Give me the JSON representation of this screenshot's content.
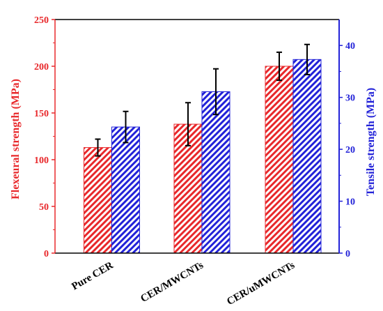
{
  "chart_data": {
    "type": "bar",
    "categories": [
      "Pure CER",
      "CER/MWCNTs",
      "CER/uMWCNTs"
    ],
    "series": [
      {
        "name": "Flexeural strength",
        "axis": "left",
        "values": [
          113,
          138,
          200
        ],
        "errors": [
          9,
          23,
          15
        ],
        "color": "#e8282b",
        "pattern": "diagonal-hatch"
      },
      {
        "name": "Tensile strength",
        "axis": "right",
        "values": [
          24.3,
          31.1,
          37.3
        ],
        "errors": [
          3.0,
          4.4,
          2.9
        ],
        "color": "#2222d8",
        "pattern": "diagonal-hatch"
      }
    ],
    "ylabel_left": "Flexeural strength (MPa)",
    "ylabel_right": "Tensile strength (MPa)",
    "ylim_left": [
      0,
      250
    ],
    "ylim_right": [
      0,
      45
    ],
    "yticks_left": [
      0,
      50,
      100,
      150,
      200,
      250
    ],
    "yticks_right": [
      0,
      10,
      20,
      30,
      40
    ],
    "left_axis_color": "#e8282b",
    "right_axis_color": "#2222d8",
    "grid": false,
    "legend": "none"
  }
}
